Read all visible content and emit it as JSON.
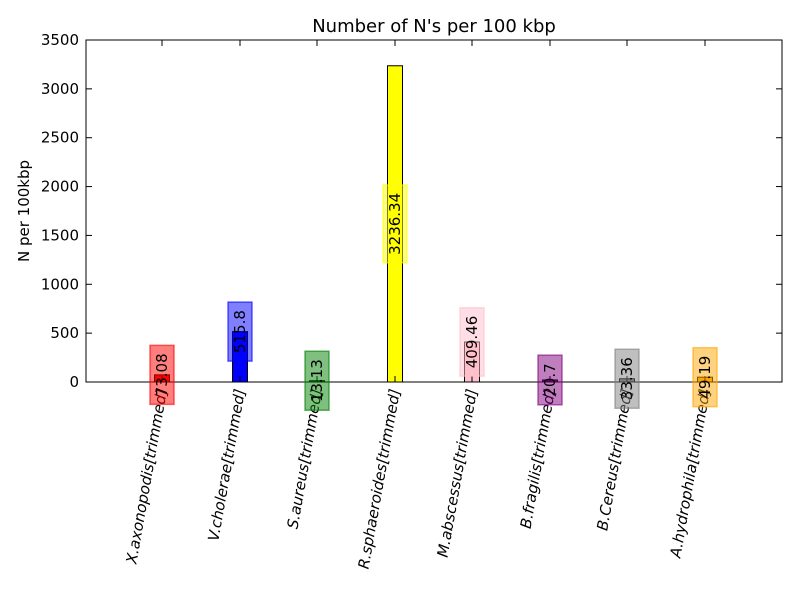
{
  "chart_data": {
    "type": "bar",
    "title": "Number of N's per 100 kbp",
    "xlabel": "",
    "ylabel": "N per 100kbp",
    "ylim": [
      0,
      3500
    ],
    "yticks": [
      0,
      500,
      1000,
      1500,
      2000,
      2500,
      3000,
      3500
    ],
    "grid": false,
    "categories": [
      "X.axonopodis[trimmed]",
      "V.cholerae[trimmed]",
      "S.aureus[trimmed]",
      "R.sphaeroides[trimmed]",
      "M.abscessus[trimmed]",
      "B.fragilis[trimmed]",
      "B.Cereus[trimmed]",
      "A.hydrophila[trimmed]"
    ],
    "values": [
      73.08,
      515.8,
      13.13,
      3236.34,
      409.46,
      20.7,
      33.36,
      49.19
    ],
    "value_labels": [
      "73.08",
      "515.8",
      "13.13",
      "3236.34",
      "409.46",
      "20.7",
      "33.36",
      "49.19"
    ],
    "colors": [
      "#ff0000",
      "#0000ff",
      "#008000",
      "#ffff00",
      "#ffc0cb",
      "#800080",
      "#808080",
      "#ffa500"
    ]
  }
}
